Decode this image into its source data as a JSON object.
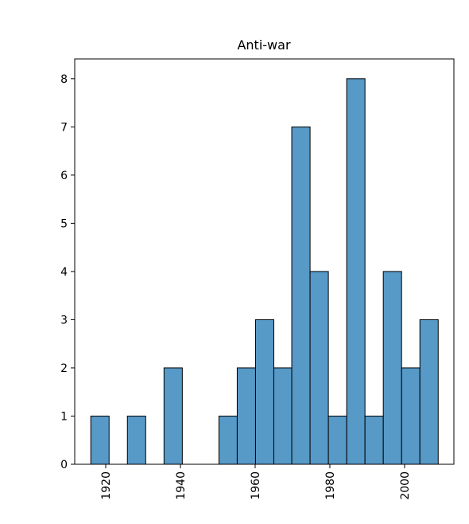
{
  "chart_data": {
    "type": "histogram",
    "title": "Anti-war",
    "bins": [
      1916,
      1920.9,
      1925.8,
      1930.7,
      1935.6,
      1940.5,
      1945.4,
      1950.3,
      1955.2,
      1960.1,
      1965,
      1969.8,
      1974.7,
      1979.6,
      1984.5,
      1989.4,
      1994.3,
      1999.2,
      2004.1,
      2009
    ],
    "values": [
      1,
      0,
      1,
      0,
      2,
      0,
      0,
      1,
      2,
      3,
      2,
      7,
      4,
      1,
      8,
      1,
      4,
      2,
      3
    ],
    "color": "#5799c7",
    "edgecolor": "#000000",
    "xlim": [
      1911.7,
      2013.2
    ],
    "xticks": [
      1920,
      1940,
      1960,
      1980,
      2000
    ],
    "ylim": [
      0,
      8.41
    ],
    "yticks": [
      0,
      1,
      2,
      3,
      4,
      5,
      6,
      7,
      8
    ],
    "grid": false
  }
}
